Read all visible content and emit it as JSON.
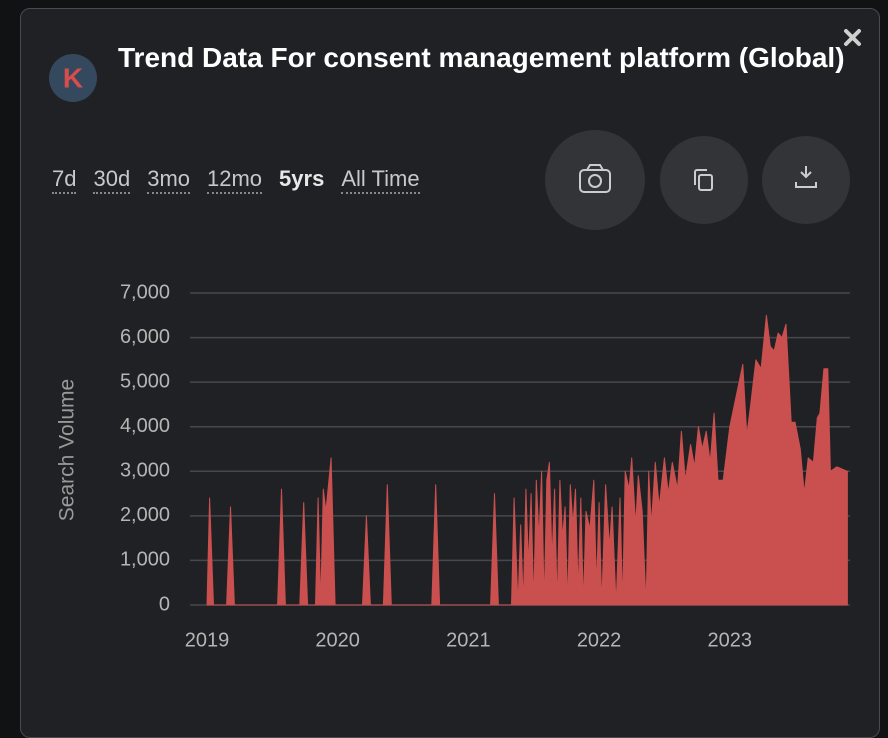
{
  "header": {
    "logo": "K",
    "title": "Trend Data For consent management platform (Global)"
  },
  "ranges": [
    "7d",
    "30d",
    "3mo",
    "12mo",
    "5yrs",
    "All Time"
  ],
  "chart_data": {
    "type": "area",
    "ylabel": "Search Volume",
    "color": "#c9504f",
    "grid": true,
    "xlim": [
      2018.87,
      2023.92
    ],
    "xticks": [
      2019,
      2020,
      2021,
      2022,
      2023
    ],
    "ylim": [
      0,
      7000
    ],
    "yticks": [
      0,
      {
        "value": 1000,
        "label": "1,000"
      },
      {
        "value": 2000,
        "label": "2,000"
      },
      {
        "value": 3000,
        "label": "3,000"
      },
      {
        "value": 4000,
        "label": "4,000"
      },
      {
        "value": 5000,
        "label": "5,000"
      },
      {
        "value": 6000,
        "label": "6,000"
      },
      {
        "value": 7000,
        "label": "7,000"
      }
    ],
    "x": [
      2019.0,
      2019.02,
      2019.05,
      2019.15,
      2019.18,
      2019.21,
      2019.54,
      2019.57,
      2019.6,
      2019.71,
      2019.74,
      2019.77,
      2019.83,
      2019.85,
      2019.87,
      2019.89,
      2019.91,
      2019.95,
      2019.98,
      2020.19,
      2020.22,
      2020.25,
      2020.35,
      2020.38,
      2020.41,
      2020.72,
      2020.75,
      2020.78,
      2021.17,
      2021.2,
      2021.23,
      2021.33,
      2021.35,
      2021.38,
      2021.4,
      2021.42,
      2021.44,
      2021.46,
      2021.48,
      2021.5,
      2021.52,
      2021.54,
      2021.56,
      2021.58,
      2021.6,
      2021.62,
      2021.64,
      2021.66,
      2021.68,
      2021.7,
      2021.72,
      2021.74,
      2021.76,
      2021.78,
      2021.8,
      2021.82,
      2021.84,
      2021.86,
      2021.88,
      2021.9,
      2021.93,
      2021.96,
      2021.98,
      2022.0,
      2022.02,
      2022.05,
      2022.08,
      2022.1,
      2022.13,
      2022.16,
      2022.18,
      2022.2,
      2022.23,
      2022.25,
      2022.28,
      2022.3,
      2022.33,
      2022.36,
      2022.38,
      2022.4,
      2022.43,
      2022.46,
      2022.5,
      2022.53,
      2022.56,
      2022.6,
      2022.63,
      2022.66,
      2022.7,
      2022.73,
      2022.76,
      2022.79,
      2022.82,
      2022.85,
      2022.88,
      2022.91,
      2022.95,
      2023.0,
      2023.05,
      2023.1,
      2023.13,
      2023.16,
      2023.2,
      2023.24,
      2023.28,
      2023.31,
      2023.34,
      2023.37,
      2023.4,
      2023.43,
      2023.47,
      2023.5,
      2023.54,
      2023.57,
      2023.6,
      2023.64,
      2023.67,
      2023.69,
      2023.72,
      2023.75,
      2023.77,
      2023.82,
      2023.9
    ],
    "values": [
      0,
      2400,
      0,
      0,
      2200,
      0,
      0,
      2600,
      0,
      0,
      2300,
      0,
      0,
      2400,
      0,
      2600,
      2100,
      3300,
      0,
      0,
      2000,
      0,
      0,
      2700,
      0,
      0,
      2700,
      0,
      0,
      2500,
      0,
      0,
      2400,
      0,
      1800,
      0,
      2600,
      900,
      2500,
      0,
      2800,
      1500,
      3000,
      0,
      2800,
      3200,
      1000,
      2600,
      0,
      2800,
      1500,
      2200,
      0,
      2700,
      1800,
      2600,
      300,
      2400,
      0,
      2100,
      1700,
      2800,
      400,
      2300,
      0,
      2700,
      1300,
      2200,
      0,
      2400,
      0,
      3000,
      2600,
      3300,
      1800,
      2900,
      2100,
      0,
      3000,
      1800,
      3200,
      2200,
      3300,
      2500,
      3200,
      2600,
      3900,
      2800,
      3600,
      3100,
      4000,
      3500,
      3900,
      3200,
      4300,
      2800,
      2800,
      4000,
      4700,
      5400,
      3800,
      4500,
      5500,
      5300,
      6500,
      5800,
      5700,
      6100,
      6000,
      6300,
      4100,
      4100,
      3500,
      2500,
      3300,
      3200,
      4200,
      4300,
      5300,
      5300,
      3000,
      3100,
      3000
    ]
  }
}
